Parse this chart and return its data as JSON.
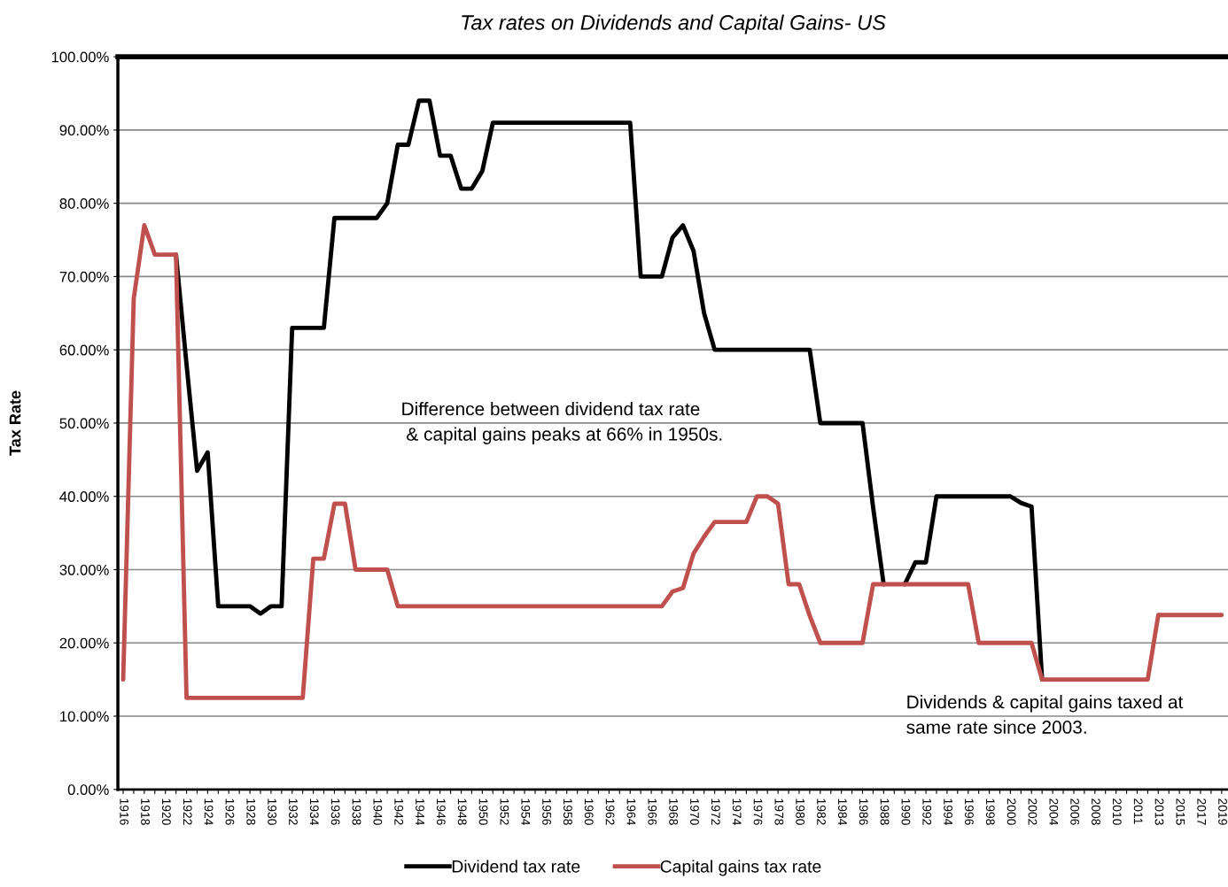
{
  "chart_data": {
    "type": "line",
    "title": "Tax rates on Dividends and Capital Gains- US",
    "ylabel": "Tax Rate",
    "categories": [
      "1916",
      null,
      "1918",
      null,
      "1920",
      null,
      "1922",
      null,
      "1924",
      null,
      "1926",
      null,
      "1928",
      null,
      "1930",
      null,
      "1932",
      null,
      "1934",
      null,
      "1936",
      null,
      "1938",
      null,
      "1940",
      null,
      "1942",
      null,
      "1944",
      null,
      "1946",
      null,
      "1948",
      null,
      "1950",
      null,
      "1952",
      null,
      "1954",
      null,
      "1956",
      null,
      "1958",
      null,
      "1960",
      null,
      "1962",
      null,
      "1964",
      null,
      "1966",
      null,
      "1968",
      null,
      "1970",
      null,
      "1972",
      null,
      "1974",
      null,
      "1976",
      null,
      "1978",
      null,
      "1980",
      null,
      "1982",
      null,
      "1984",
      null,
      "1986",
      null,
      "1988",
      null,
      "1990",
      null,
      "1992",
      null,
      "1994",
      null,
      "1996",
      null,
      "1998",
      null,
      "2000",
      null,
      "2002",
      null,
      "2004",
      null,
      "2006",
      null,
      "2008",
      null,
      "2010",
      null,
      "2011",
      null,
      "2013",
      null,
      "2015",
      null,
      "2017",
      null,
      "2019"
    ],
    "series": [
      {
        "name": "Dividend tax rate",
        "color": "#000000",
        "values": [
          null,
          null,
          null,
          null,
          null,
          73,
          58,
          43.5,
          46,
          25,
          25,
          25,
          25,
          24,
          25,
          25,
          63,
          63,
          63,
          63,
          78,
          78,
          78,
          78,
          78,
          80,
          88,
          88,
          94,
          94,
          86.5,
          86.5,
          82,
          82,
          84.4,
          91,
          91,
          91,
          91,
          91,
          91,
          91,
          91,
          91,
          91,
          91,
          91,
          91,
          91,
          70,
          70,
          70,
          75.3,
          77,
          73.5,
          65,
          60,
          60,
          60,
          60,
          60,
          60,
          60,
          60,
          60,
          60,
          50,
          50,
          50,
          50,
          50,
          38.5,
          28,
          null,
          28,
          31,
          31,
          40,
          40,
          40,
          40,
          40,
          40,
          40,
          40,
          39.1,
          38.6,
          15,
          null,
          null,
          null,
          null,
          null,
          null,
          null,
          null,
          null,
          null,
          null,
          null,
          null,
          null,
          null,
          null,
          null
        ]
      },
      {
        "name": "Capital gains tax rate",
        "color": "#c0504d",
        "values": [
          15,
          67,
          77,
          73,
          73,
          73,
          12.5,
          12.5,
          12.5,
          12.5,
          12.5,
          12.5,
          12.5,
          12.5,
          12.5,
          12.5,
          12.5,
          12.5,
          31.5,
          31.5,
          39,
          39,
          30,
          30,
          30,
          30,
          25,
          25,
          25,
          25,
          25,
          25,
          25,
          25,
          25,
          25,
          25,
          25,
          25,
          25,
          25,
          25,
          25,
          25,
          25,
          25,
          25,
          25,
          25,
          25,
          25,
          25,
          27,
          27.5,
          32.2,
          34.5,
          36.5,
          36.5,
          36.5,
          36.5,
          40,
          40,
          39,
          28,
          28,
          23.7,
          20,
          20,
          20,
          20,
          20,
          28,
          28,
          28,
          28,
          28,
          28,
          28,
          28,
          28,
          28,
          20,
          20,
          20,
          20,
          20,
          20,
          15,
          15,
          15,
          15,
          15,
          15,
          15,
          15,
          15,
          15,
          15,
          23.8,
          23.8,
          23.8,
          23.8,
          23.8,
          23.8,
          23.8
        ]
      }
    ],
    "ylim": [
      0,
      100
    ],
    "yticks": [
      {
        "value": 0,
        "label": "0.00%"
      },
      {
        "value": 10,
        "label": "10.00%"
      },
      {
        "value": 20,
        "label": "20.00%"
      },
      {
        "value": 30,
        "label": "30.00%"
      },
      {
        "value": 40,
        "label": "40.00%"
      },
      {
        "value": 50,
        "label": "50.00%"
      },
      {
        "value": 60,
        "label": "60.00%"
      },
      {
        "value": 70,
        "label": "70.00%"
      },
      {
        "value": 80,
        "label": "80.00%"
      },
      {
        "value": 90,
        "label": "90.00%"
      },
      {
        "value": 100,
        "label": "100.00%"
      }
    ],
    "grid": "y",
    "legend": "bottom",
    "marker": "none",
    "line_style": "solid",
    "annotations": [
      "Difference between dividend tax rate\n & capital gains peaks at 66% in 1950s.",
      "Dividends & capital gains taxed at\nsame rate since 2003."
    ]
  }
}
